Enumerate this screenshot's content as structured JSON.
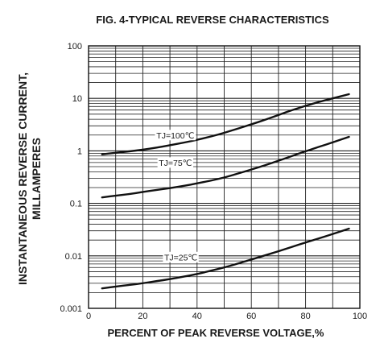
{
  "chart_data": {
    "type": "line",
    "title": "FIG. 4-TYPICAL REVERSE CHARACTERISTICS",
    "xlabel": "PERCENT OF PEAK REVERSE VOLTAGE,%",
    "ylabel_line1": "INSTANTANEOUS REVERSE CURRENT,",
    "ylabel_line2": "MILLAMPERES",
    "xlim": [
      0,
      100
    ],
    "ylim": [
      0.001,
      100
    ],
    "yscale": "log",
    "grid": true,
    "xticks": [
      "0",
      "20",
      "40",
      "60",
      "80",
      "100"
    ],
    "yticks": [
      "0.001",
      "0.01",
      "0.1",
      "1",
      "10",
      "100"
    ],
    "series": [
      {
        "name": "TJ=100℃",
        "x": [
          5,
          10,
          15,
          20,
          25,
          30,
          35,
          40,
          45,
          50,
          55,
          60,
          65,
          70,
          75,
          80,
          85,
          90,
          96
        ],
        "y": [
          0.86,
          0.92,
          0.98,
          1.05,
          1.15,
          1.28,
          1.43,
          1.62,
          1.87,
          2.2,
          2.65,
          3.2,
          3.9,
          4.8,
          6.0,
          7.2,
          8.6,
          10.0,
          12.0
        ]
      },
      {
        "name": "TJ=75℃",
        "x": [
          5,
          10,
          15,
          20,
          25,
          30,
          35,
          40,
          45,
          50,
          55,
          60,
          65,
          70,
          75,
          80,
          85,
          90,
          96
        ],
        "y": [
          0.13,
          0.14,
          0.15,
          0.165,
          0.18,
          0.195,
          0.215,
          0.24,
          0.27,
          0.31,
          0.37,
          0.44,
          0.53,
          0.65,
          0.8,
          0.98,
          1.2,
          1.45,
          1.85
        ]
      },
      {
        "name": "TJ=25℃",
        "x": [
          5,
          10,
          15,
          20,
          25,
          30,
          35,
          40,
          45,
          50,
          55,
          60,
          65,
          70,
          75,
          80,
          85,
          90,
          96
        ],
        "y": [
          0.0024,
          0.0026,
          0.0028,
          0.003,
          0.0033,
          0.0036,
          0.004,
          0.0045,
          0.0052,
          0.006,
          0.0071,
          0.0085,
          0.0102,
          0.0122,
          0.0148,
          0.018,
          0.0215,
          0.026,
          0.033
        ]
      }
    ],
    "annotations": [
      {
        "text": "TJ=100℃",
        "x": 32,
        "y": 2.0
      },
      {
        "text": "TJ=75℃",
        "x": 32,
        "y": 0.6
      },
      {
        "text": "TJ=25℃",
        "x": 34,
        "y": 0.0095
      }
    ]
  }
}
